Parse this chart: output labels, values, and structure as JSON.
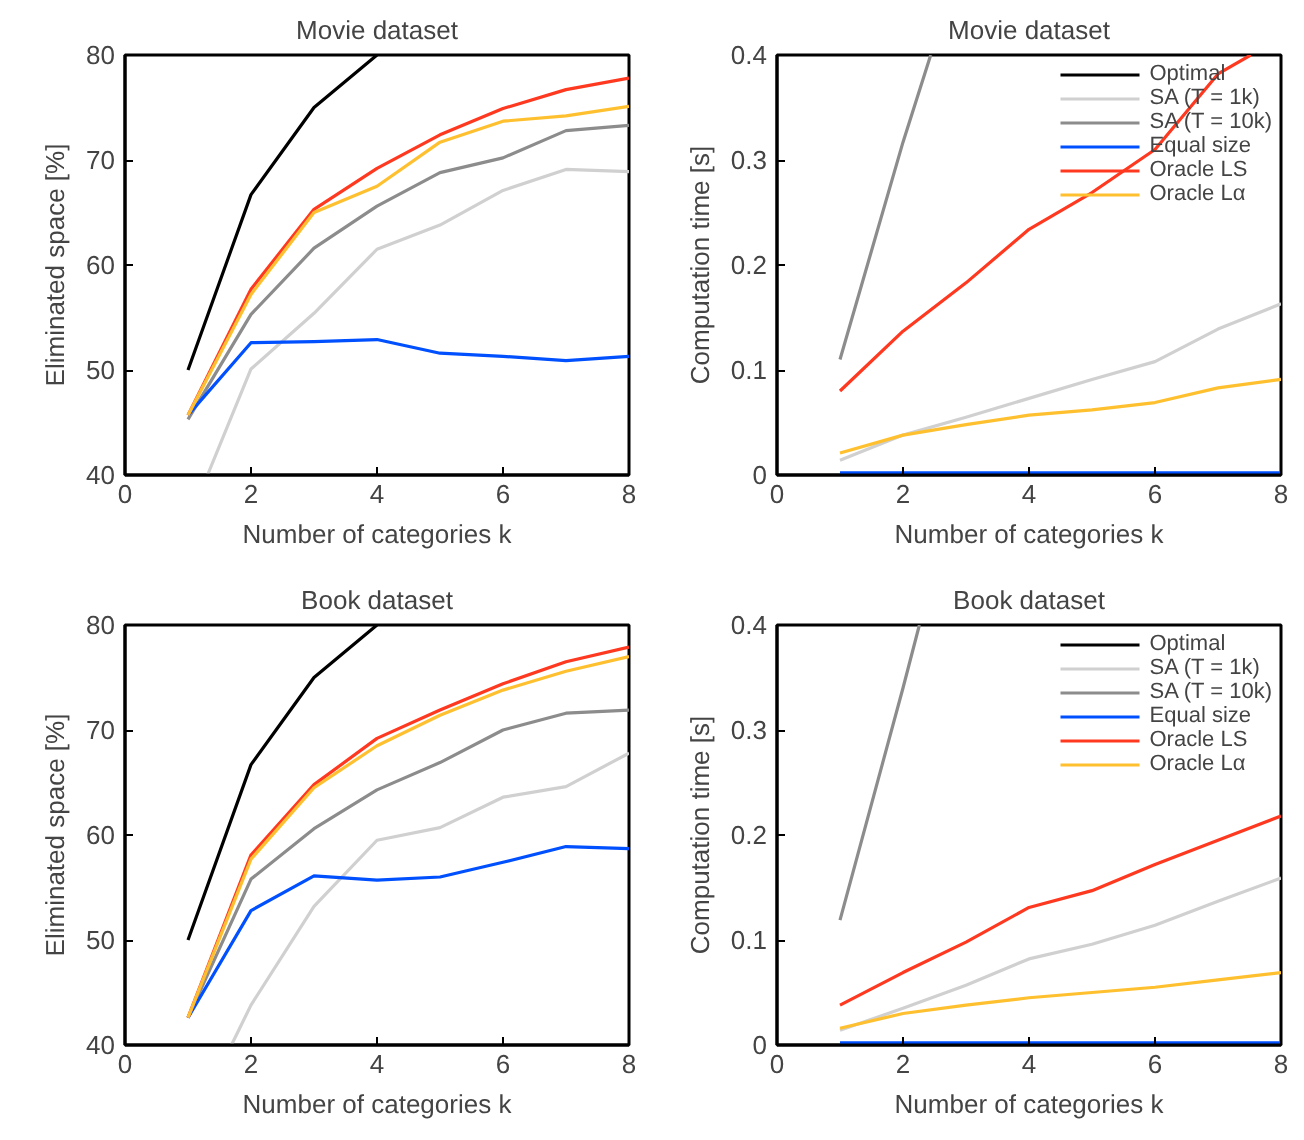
{
  "chart_data": [
    {
      "type": "line",
      "title": "Movie dataset",
      "xlabel": "Number of categories k",
      "ylabel": "Eliminated space [%]",
      "x": [
        1,
        2,
        3,
        4,
        5,
        6,
        7,
        8
      ],
      "xlim": [
        0,
        8
      ],
      "ylim": [
        40,
        80
      ],
      "xticks": [
        0,
        2,
        4,
        6,
        8
      ],
      "yticks": [
        40,
        50,
        60,
        70,
        80
      ],
      "grid": false,
      "legend": false,
      "series": [
        {
          "color": "#000000",
          "x": [
            1,
            2,
            3,
            4
          ],
          "values": [
            50,
            66.7,
            75,
            80
          ]
        },
        {
          "color": "#d0d0d0",
          "x": [
            1.31,
            2,
            3,
            4,
            5,
            6,
            7,
            8
          ],
          "values": [
            40,
            50.1,
            55.4,
            61.5,
            63.8,
            67.1,
            69.1,
            68.9
          ]
        },
        {
          "color": "#8c8c8c",
          "values": [
            45.3,
            55.3,
            61.6,
            65.6,
            68.8,
            70.2,
            72.8,
            73.3
          ]
        },
        {
          "color": "#0050ff",
          "values": [
            45.7,
            52.6,
            52.7,
            52.9,
            51.6,
            51.3,
            50.9,
            51.3
          ]
        },
        {
          "color": "#ff3820",
          "values": [
            45.7,
            57.7,
            65.3,
            69.2,
            72.4,
            74.9,
            76.7,
            77.8
          ]
        },
        {
          "color": "#ffc030",
          "values": [
            45.7,
            57.2,
            65,
            67.5,
            71.7,
            73.7,
            74.2,
            75.1
          ]
        }
      ]
    },
    {
      "type": "line",
      "title": "Movie dataset",
      "xlabel": "Number of categories k",
      "ylabel": "Computation time [s]",
      "x": [
        1,
        2,
        3,
        4,
        5,
        6,
        7,
        8
      ],
      "xlim": [
        0,
        8
      ],
      "ylim": [
        0,
        0.4
      ],
      "xticks": [
        0,
        2,
        4,
        6,
        8
      ],
      "yticks": [
        0,
        0.1,
        0.2,
        0.3,
        0.4
      ],
      "grid": false,
      "legend": "top right",
      "series": [
        {
          "name": "Optimal",
          "color": "#000000",
          "values": [
            null,
            null,
            null,
            null,
            null,
            null,
            null,
            null
          ]
        },
        {
          "name": "SA (T = 1k)",
          "color": "#d0d0d0",
          "values": [
            0.014,
            0.038,
            0.055,
            0.073,
            0.091,
            0.108,
            0.139,
            0.163
          ]
        },
        {
          "name": "SA (T = 10k)",
          "color": "#8c8c8c",
          "x": [
            1,
            2,
            2.44
          ],
          "values": [
            0.11,
            0.317,
            0.4
          ]
        },
        {
          "name": "Equal size",
          "color": "#0050ff",
          "values": [
            0.002,
            0.002,
            0.002,
            0.002,
            0.002,
            0.002,
            0.002,
            0.002
          ]
        },
        {
          "name": "Oracle LS",
          "color": "#ff3820",
          "x": [
            1,
            2,
            3,
            4,
            5,
            6,
            7,
            7.52
          ],
          "values": [
            0.08,
            0.137,
            0.183,
            0.234,
            0.269,
            0.31,
            0.382,
            0.4
          ]
        },
        {
          "name": "Oracle Lα",
          "color": "#ffc030",
          "values": [
            0.021,
            0.038,
            0.048,
            0.057,
            0.062,
            0.069,
            0.083,
            0.091
          ]
        }
      ]
    },
    {
      "type": "line",
      "title": "Book dataset",
      "xlabel": "Number of categories k",
      "ylabel": "Eliminated space [%]",
      "x": [
        1,
        2,
        3,
        4,
        5,
        6,
        7,
        8
      ],
      "xlim": [
        0,
        8
      ],
      "ylim": [
        40,
        80
      ],
      "xticks": [
        0,
        2,
        4,
        6,
        8
      ],
      "yticks": [
        40,
        50,
        60,
        70,
        80
      ],
      "grid": false,
      "legend": false,
      "series": [
        {
          "color": "#000000",
          "x": [
            1,
            2,
            3,
            4
          ],
          "values": [
            50,
            66.7,
            75,
            80
          ]
        },
        {
          "color": "#d0d0d0",
          "x": [
            1.69,
            2,
            3,
            4,
            5,
            6,
            7,
            8
          ],
          "values": [
            40,
            43.8,
            53.2,
            59.5,
            60.7,
            63.6,
            64.6,
            67.8
          ]
        },
        {
          "color": "#8c8c8c",
          "values": [
            42.6,
            55.8,
            60.6,
            64.3,
            66.9,
            70,
            71.6,
            71.9
          ]
        },
        {
          "color": "#0050ff",
          "values": [
            42.6,
            52.8,
            56.1,
            55.7,
            56,
            57.4,
            58.9,
            58.7
          ]
        },
        {
          "color": "#ff3820",
          "values": [
            42.6,
            58.1,
            64.8,
            69.2,
            71.9,
            74.4,
            76.5,
            77.9
          ]
        },
        {
          "color": "#ffc030",
          "values": [
            42.6,
            57.7,
            64.5,
            68.5,
            71.4,
            73.8,
            75.6,
            77
          ]
        }
      ]
    },
    {
      "type": "line",
      "title": "Book dataset",
      "xlabel": "Number of categories k",
      "ylabel": "Computation time [s]",
      "x": [
        1,
        2,
        3,
        4,
        5,
        6,
        7,
        8
      ],
      "xlim": [
        0,
        8
      ],
      "ylim": [
        0,
        0.4
      ],
      "xticks": [
        0,
        2,
        4,
        6,
        8
      ],
      "yticks": [
        0,
        0.1,
        0.2,
        0.3,
        0.4
      ],
      "grid": false,
      "legend": "top right",
      "series": [
        {
          "name": "Optimal",
          "color": "#000000",
          "values": [
            null,
            null,
            null,
            null,
            null,
            null,
            null,
            null
          ]
        },
        {
          "name": "SA (T = 1k)",
          "color": "#d0d0d0",
          "values": [
            0.014,
            0.035,
            0.057,
            0.082,
            0.096,
            0.114,
            0.137,
            0.159
          ]
        },
        {
          "name": "SA (T = 10k)",
          "color": "#8c8c8c",
          "x": [
            1,
            2,
            2.26
          ],
          "values": [
            0.119,
            0.34,
            0.4
          ]
        },
        {
          "name": "Equal size",
          "color": "#0050ff",
          "values": [
            0.002,
            0.002,
            0.002,
            0.002,
            0.002,
            0.002,
            0.002,
            0.002
          ]
        },
        {
          "name": "Oracle LS",
          "color": "#ff3820",
          "values": [
            0.038,
            0.069,
            0.098,
            0.131,
            0.147,
            0.172,
            0.195,
            0.218
          ]
        },
        {
          "name": "Oracle Lα",
          "color": "#ffc030",
          "values": [
            0.016,
            0.03,
            0.038,
            0.045,
            0.05,
            0.055,
            0.062,
            0.069
          ]
        }
      ]
    }
  ]
}
